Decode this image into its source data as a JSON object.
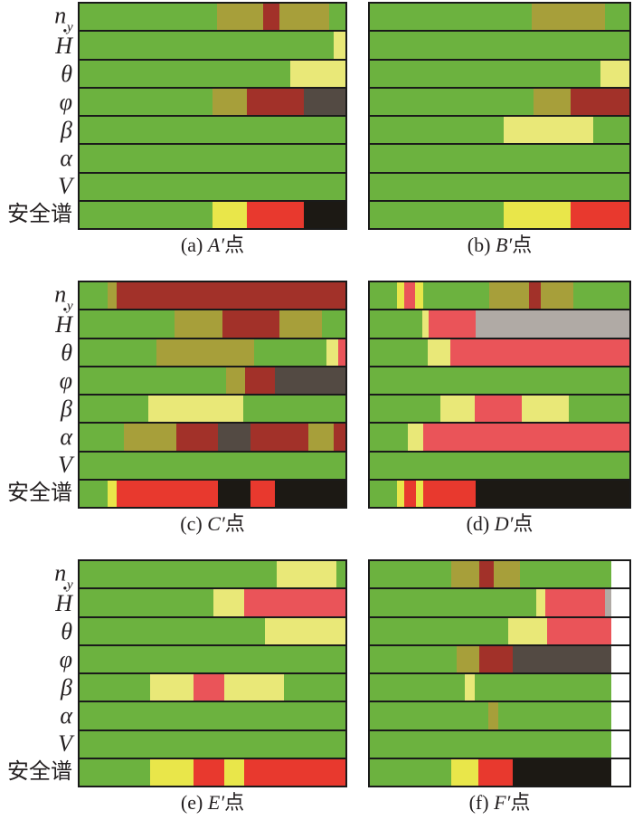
{
  "chart_data": {
    "type": "bar",
    "orientation": "horizontal_stacked_spectrum",
    "title": "",
    "xlabel": "",
    "ylabel": "",
    "x_range": [
      0,
      1
    ],
    "grid": false,
    "legend": "none",
    "row_labels": [
      {
        "id": "ny",
        "main": "n",
        "sub": "y"
      },
      {
        "id": "hdot",
        "main": "H",
        "dot_above": true
      },
      {
        "id": "theta",
        "main": "θ"
      },
      {
        "id": "phi",
        "main": "φ"
      },
      {
        "id": "beta",
        "main": "β"
      },
      {
        "id": "alpha",
        "main": "α"
      },
      {
        "id": "v",
        "main": "V"
      },
      {
        "id": "safety",
        "main": "安全谱",
        "cjk": true
      }
    ],
    "colors": {
      "green": "#6cb23f",
      "olive": "#a79f3a",
      "darkred": "#a23129",
      "paleyellow": "#e9e878",
      "yellow": "#e9e64a",
      "red": "#e8392e",
      "salmon": "#ea5459",
      "darkgray": "#534a43",
      "lightgray": "#b0aaa5",
      "black": "#1c1914",
      "white": "#ffffff"
    },
    "panels": [
      {
        "id": "a",
        "caption": {
          "index": "(a)",
          "letter": "A′",
          "suffix": "点"
        },
        "rows": [
          [
            [
              "green",
              0.517
            ],
            [
              "olive",
              0.174
            ],
            [
              "darkred",
              0.062
            ],
            [
              "olive",
              0.185
            ],
            [
              "green",
              0.062
            ]
          ],
          [
            [
              "green",
              0.955
            ],
            [
              "paleyellow",
              0.045
            ]
          ],
          [
            [
              "green",
              0.792
            ],
            [
              "paleyellow",
              0.208
            ]
          ],
          [
            [
              "green",
              0.5
            ],
            [
              "olive",
              0.13
            ],
            [
              "darkred",
              0.213
            ],
            [
              "darkgray",
              0.157
            ]
          ],
          [
            [
              "green",
              1
            ]
          ],
          [
            [
              "green",
              1
            ]
          ],
          [
            [
              "green",
              1
            ]
          ],
          [
            [
              "green",
              0.5
            ],
            [
              "yellow",
              0.13
            ],
            [
              "red",
              0.213
            ],
            [
              "black",
              0.157
            ]
          ]
        ]
      },
      {
        "id": "b",
        "caption": {
          "index": "(b)",
          "letter": "B′",
          "suffix": "点"
        },
        "rows": [
          [
            [
              "green",
              0.624
            ],
            [
              "olive",
              0.283
            ],
            [
              "green",
              0.093
            ]
          ],
          [
            [
              "green",
              1
            ]
          ],
          [
            [
              "green",
              0.89
            ],
            [
              "paleyellow",
              0.11
            ]
          ],
          [
            [
              "green",
              0.63
            ],
            [
              "olive",
              0.145
            ],
            [
              "darkred",
              0.225
            ]
          ],
          [
            [
              "green",
              0.514
            ],
            [
              "paleyellow",
              0.347
            ],
            [
              "green",
              0.139
            ]
          ],
          [
            [
              "green",
              1
            ]
          ],
          [
            [
              "green",
              1
            ]
          ],
          [
            [
              "green",
              0.514
            ],
            [
              "yellow",
              0.261
            ],
            [
              "red",
              0.225
            ]
          ]
        ]
      },
      {
        "id": "c",
        "caption": {
          "index": "(c)",
          "letter": "C′",
          "suffix": "点"
        },
        "rows": [
          [
            [
              "green",
              0.107
            ],
            [
              "olive",
              0.031
            ],
            [
              "darkred",
              0.862
            ]
          ],
          [
            [
              "green",
              0.356
            ],
            [
              "olive",
              0.181
            ],
            [
              "darkred",
              0.214
            ],
            [
              "olive",
              0.159
            ],
            [
              "green",
              0.09
            ]
          ],
          [
            [
              "green",
              0.288
            ],
            [
              "olive",
              0.367
            ],
            [
              "green",
              0.274
            ],
            [
              "paleyellow",
              0.045
            ],
            [
              "salmon",
              0.026
            ]
          ],
          [
            [
              "green",
              0.55
            ],
            [
              "olive",
              0.071
            ],
            [
              "darkred",
              0.113
            ],
            [
              "darkgray",
              0.266
            ]
          ],
          [
            [
              "green",
              0.258
            ],
            [
              "paleyellow",
              0.358
            ],
            [
              "green",
              0.384
            ]
          ],
          [
            [
              "green",
              0.167
            ],
            [
              "olive",
              0.197
            ],
            [
              "darkred",
              0.156
            ],
            [
              "darkgray",
              0.122
            ],
            [
              "darkred",
              0.219
            ],
            [
              "olive",
              0.094
            ],
            [
              "darkred",
              0.045
            ]
          ],
          [
            [
              "green",
              1
            ]
          ],
          [
            [
              "green",
              0.107
            ],
            [
              "yellow",
              0.031
            ],
            [
              "red",
              0.382
            ],
            [
              "black",
              0.124
            ],
            [
              "red",
              0.09
            ],
            [
              "black",
              0.266
            ]
          ]
        ]
      },
      {
        "id": "d",
        "caption": {
          "index": "(d)",
          "letter": "D′",
          "suffix": "点"
        },
        "rows": [
          [
            [
              "green",
              0.103
            ],
            [
              "yellow",
              0.028
            ],
            [
              "salmon",
              0.045
            ],
            [
              "yellow",
              0.028
            ],
            [
              "green",
              0.255
            ],
            [
              "olive",
              0.156
            ],
            [
              "darkred",
              0.045
            ],
            [
              "olive",
              0.123
            ],
            [
              "green",
              0.217
            ]
          ],
          [
            [
              "green",
              0.201
            ],
            [
              "paleyellow",
              0.027
            ],
            [
              "salmon",
              0.179
            ],
            [
              "lightgray",
              0.593
            ]
          ],
          [
            [
              "green",
              0.224
            ],
            [
              "paleyellow",
              0.086
            ],
            [
              "salmon",
              0.69
            ]
          ],
          [
            [
              "green",
              1
            ]
          ],
          [
            [
              "green",
              0.271
            ],
            [
              "paleyellow",
              0.132
            ],
            [
              "salmon",
              0.183
            ],
            [
              "paleyellow",
              0.182
            ],
            [
              "green",
              0.232
            ]
          ],
          [
            [
              "green",
              0.145
            ],
            [
              "paleyellow",
              0.061
            ],
            [
              "salmon",
              0.794
            ]
          ],
          [
            [
              "green",
              1
            ]
          ],
          [
            [
              "green",
              0.103
            ],
            [
              "yellow",
              0.028
            ],
            [
              "red",
              0.048
            ],
            [
              "yellow",
              0.025
            ],
            [
              "red",
              0.203
            ],
            [
              "black",
              0.593
            ]
          ]
        ]
      },
      {
        "id": "e",
        "caption": {
          "index": "(e)",
          "letter": "E′",
          "suffix": "点"
        },
        "rows": [
          [
            [
              "green",
              0.74
            ],
            [
              "paleyellow",
              0.226
            ],
            [
              "green",
              0.034
            ]
          ],
          [
            [
              "green",
              0.504
            ],
            [
              "paleyellow",
              0.115
            ],
            [
              "salmon",
              0.381
            ]
          ],
          [
            [
              "green",
              0.696
            ],
            [
              "paleyellow",
              0.304
            ]
          ],
          [
            [
              "green",
              1
            ]
          ],
          [
            [
              "green",
              0.267
            ],
            [
              "paleyellow",
              0.161
            ],
            [
              "salmon",
              0.115
            ],
            [
              "paleyellow",
              0.226
            ],
            [
              "green",
              0.231
            ]
          ],
          [
            [
              "green",
              1
            ]
          ],
          [
            [
              "green",
              1
            ]
          ],
          [
            [
              "green",
              0.267
            ],
            [
              "yellow",
              0.161
            ],
            [
              "red",
              0.115
            ],
            [
              "yellow",
              0.076
            ],
            [
              "red",
              0.381
            ]
          ]
        ]
      },
      {
        "id": "f",
        "caption": {
          "index": "(f)",
          "letter": "F′",
          "suffix": "点"
        },
        "rows": [
          [
            [
              "green",
              0.314
            ],
            [
              "olive",
              0.107
            ],
            [
              "darkred",
              0.058
            ],
            [
              "olive",
              0.101
            ],
            [
              "green",
              0.35
            ],
            [
              "white",
              0.07
            ]
          ],
          [
            [
              "green",
              0.642
            ],
            [
              "paleyellow",
              0.033
            ],
            [
              "salmon",
              0.232
            ],
            [
              "lightgray",
              0.023
            ],
            [
              "white",
              0.07
            ]
          ],
          [
            [
              "green",
              0.533
            ],
            [
              "paleyellow",
              0.15
            ],
            [
              "salmon",
              0.247
            ],
            [
              "white",
              0.07
            ]
          ],
          [
            [
              "green",
              0.336
            ],
            [
              "olive",
              0.085
            ],
            [
              "darkred",
              0.128
            ],
            [
              "darkgray",
              0.381
            ],
            [
              "white",
              0.07
            ]
          ],
          [
            [
              "green",
              0.367
            ],
            [
              "paleyellow",
              0.036
            ],
            [
              "green",
              0.527
            ],
            [
              "white",
              0.07
            ]
          ],
          [
            [
              "green",
              0.455
            ],
            [
              "olive",
              0.041
            ],
            [
              "green",
              0.434
            ],
            [
              "white",
              0.07
            ]
          ],
          [
            [
              "green",
              0.93
            ],
            [
              "white",
              0.07
            ]
          ],
          [
            [
              "green",
              0.314
            ],
            [
              "yellow",
              0.104
            ],
            [
              "red",
              0.131
            ],
            [
              "black",
              0.381
            ],
            [
              "white",
              0.07
            ]
          ]
        ]
      }
    ]
  }
}
